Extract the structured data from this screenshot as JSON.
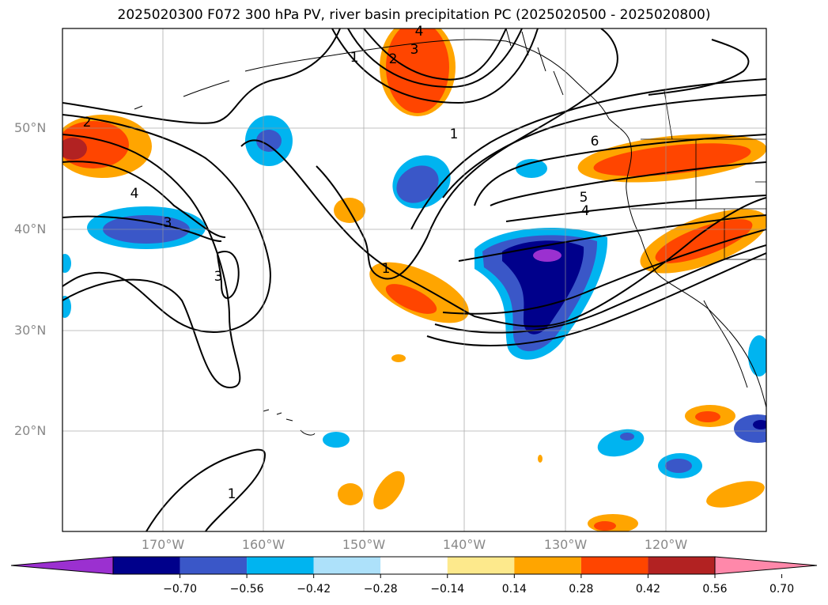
{
  "title": "2025020300 F072 300 hPa PV, river basin precipitation PC (2025020500 - 2025020800)",
  "map": {
    "projection": "lat-lon",
    "lon_range": [
      -180,
      -110
    ],
    "lat_range": [
      10,
      60
    ],
    "lat_ticks": [
      "20°N",
      "30°N",
      "40°N",
      "50°N"
    ],
    "lon_ticks": [
      "170°W",
      "160°W",
      "150°W",
      "140°W",
      "130°W",
      "120°W"
    ],
    "pv_contour_labels": [
      "1",
      "1",
      "1",
      "1",
      "2",
      "2",
      "3",
      "3",
      "3",
      "4",
      "4",
      "4",
      "5",
      "6"
    ]
  },
  "colorbar": {
    "tick_labels": [
      "−0.70",
      "−0.56",
      "−0.42",
      "−0.28",
      "−0.14",
      "0.14",
      "0.28",
      "0.42",
      "0.56",
      "0.70"
    ],
    "colors": [
      "#9b30d0",
      "#00008b",
      "#3a57c8",
      "#00b4f0",
      "#ade1fa",
      "#ffffff",
      "#fde98c",
      "#ffa500",
      "#ff4500",
      "#b22222",
      "#ff88aa"
    ]
  }
}
